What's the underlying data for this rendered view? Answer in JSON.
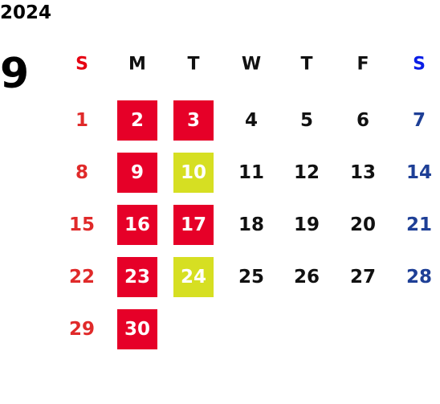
{
  "calendar": {
    "year": "2024",
    "month": "9",
    "weekdays": [
      "S",
      "M",
      "T",
      "W",
      "T",
      "F",
      "S"
    ],
    "weeks": [
      [
        {
          "day": "1"
        },
        {
          "day": "2",
          "highlight": "#e60028"
        },
        {
          "day": "3",
          "highlight": "#e60028"
        },
        {
          "day": "4"
        },
        {
          "day": "5"
        },
        {
          "day": "6"
        },
        {
          "day": "7"
        }
      ],
      [
        {
          "day": "8"
        },
        {
          "day": "9",
          "highlight": "#e60028"
        },
        {
          "day": "10",
          "highlight": "#d6df22"
        },
        {
          "day": "11"
        },
        {
          "day": "12"
        },
        {
          "day": "13"
        },
        {
          "day": "14"
        }
      ],
      [
        {
          "day": "15"
        },
        {
          "day": "16",
          "highlight": "#e60028"
        },
        {
          "day": "17",
          "highlight": "#e60028"
        },
        {
          "day": "18"
        },
        {
          "day": "19"
        },
        {
          "day": "20"
        },
        {
          "day": "21"
        }
      ],
      [
        {
          "day": "22"
        },
        {
          "day": "23",
          "highlight": "#e60028"
        },
        {
          "day": "24",
          "highlight": "#d6df22"
        },
        {
          "day": "25"
        },
        {
          "day": "26"
        },
        {
          "day": "27"
        },
        {
          "day": "28"
        }
      ],
      [
        {
          "day": "29"
        },
        {
          "day": "30",
          "highlight": "#e60028"
        }
      ]
    ]
  }
}
